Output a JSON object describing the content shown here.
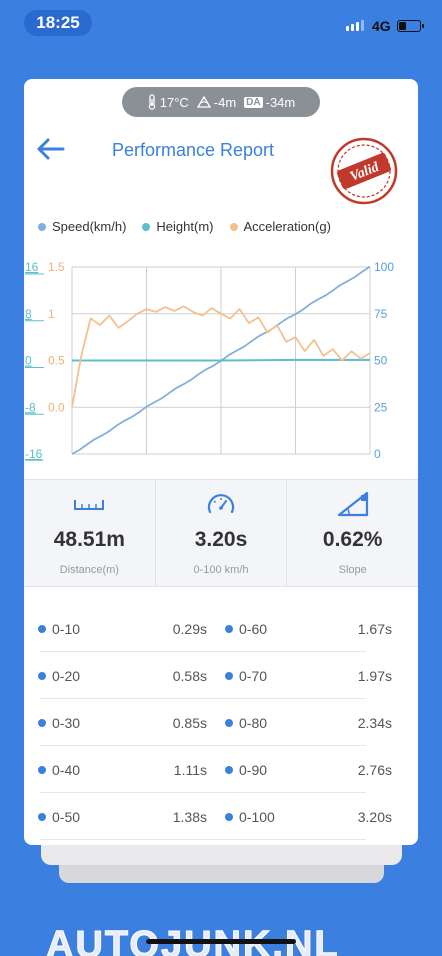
{
  "status_bar": {
    "time": "18:25",
    "network": "4G"
  },
  "environment": {
    "temperature": "17°C",
    "altitude": "-4m",
    "density_altitude_label": "DA",
    "density_altitude": "-34m"
  },
  "header": {
    "title": "Performance Report",
    "stamp_text": "Valid"
  },
  "chart_data": {
    "type": "line",
    "series": [
      {
        "name": "Speed(km/h)",
        "color": "#7fb0e0",
        "axis": "right",
        "x": [
          0,
          3.2
        ],
        "values": [
          0,
          100
        ]
      },
      {
        "name": "Height(m)",
        "color": "#5bbfca",
        "axis": "left-outer",
        "values": [
          0,
          0,
          0,
          0.1,
          0.1
        ]
      },
      {
        "name": "Acceleration(g)",
        "color": "#f5c08e",
        "axis": "left-inner",
        "values": [
          0,
          0.55,
          0.95,
          0.88,
          0.98,
          0.85,
          0.92,
          1.0,
          1.05,
          1.02,
          1.07,
          1.03,
          1.08,
          1.02,
          0.98,
          1.06,
          1.0,
          0.95,
          1.05,
          0.9,
          0.96,
          0.8,
          0.88,
          0.7,
          0.75,
          0.6,
          0.72,
          0.55,
          0.62,
          0.5,
          0.6,
          0.52,
          0.58
        ]
      }
    ],
    "axes": {
      "left_outer": {
        "ticks": [
          "16",
          "8",
          "0",
          "-8",
          "-16"
        ],
        "color": "#5bbfca"
      },
      "left_inner": {
        "ticks": [
          "1.5",
          "1",
          "0.5",
          "0.0"
        ],
        "color": "#f0b27a"
      },
      "right": {
        "ticks": [
          "100",
          "75",
          "50",
          "25",
          "0"
        ],
        "color": "#5ba0d8"
      }
    },
    "grid": true
  },
  "metrics": [
    {
      "value": "48.51m",
      "label": "Distance(m)",
      "icon": "ruler-icon"
    },
    {
      "value": "3.20s",
      "label": "0-100 km/h",
      "icon": "speedometer-icon"
    },
    {
      "value": "0.62%",
      "label": "Slope",
      "icon": "slope-icon"
    }
  ],
  "times": [
    {
      "left_label": "0-10",
      "left_value": "0.29s",
      "right_label": "0-60",
      "right_value": "1.67s"
    },
    {
      "left_label": "0-20",
      "left_value": "0.58s",
      "right_label": "0-70",
      "right_value": "1.97s"
    },
    {
      "left_label": "0-30",
      "left_value": "0.85s",
      "right_label": "0-80",
      "right_value": "2.34s"
    },
    {
      "left_label": "0-40",
      "left_value": "1.11s",
      "right_label": "0-90",
      "right_value": "2.76s"
    },
    {
      "left_label": "0-50",
      "left_value": "1.38s",
      "right_label": "0-100",
      "right_value": "3.20s"
    }
  ],
  "watermark": "AUTOJUNK.NL",
  "colors": {
    "accent": "#3a80dd",
    "background": "#3b7fe0",
    "stamp": "#c0392b"
  }
}
